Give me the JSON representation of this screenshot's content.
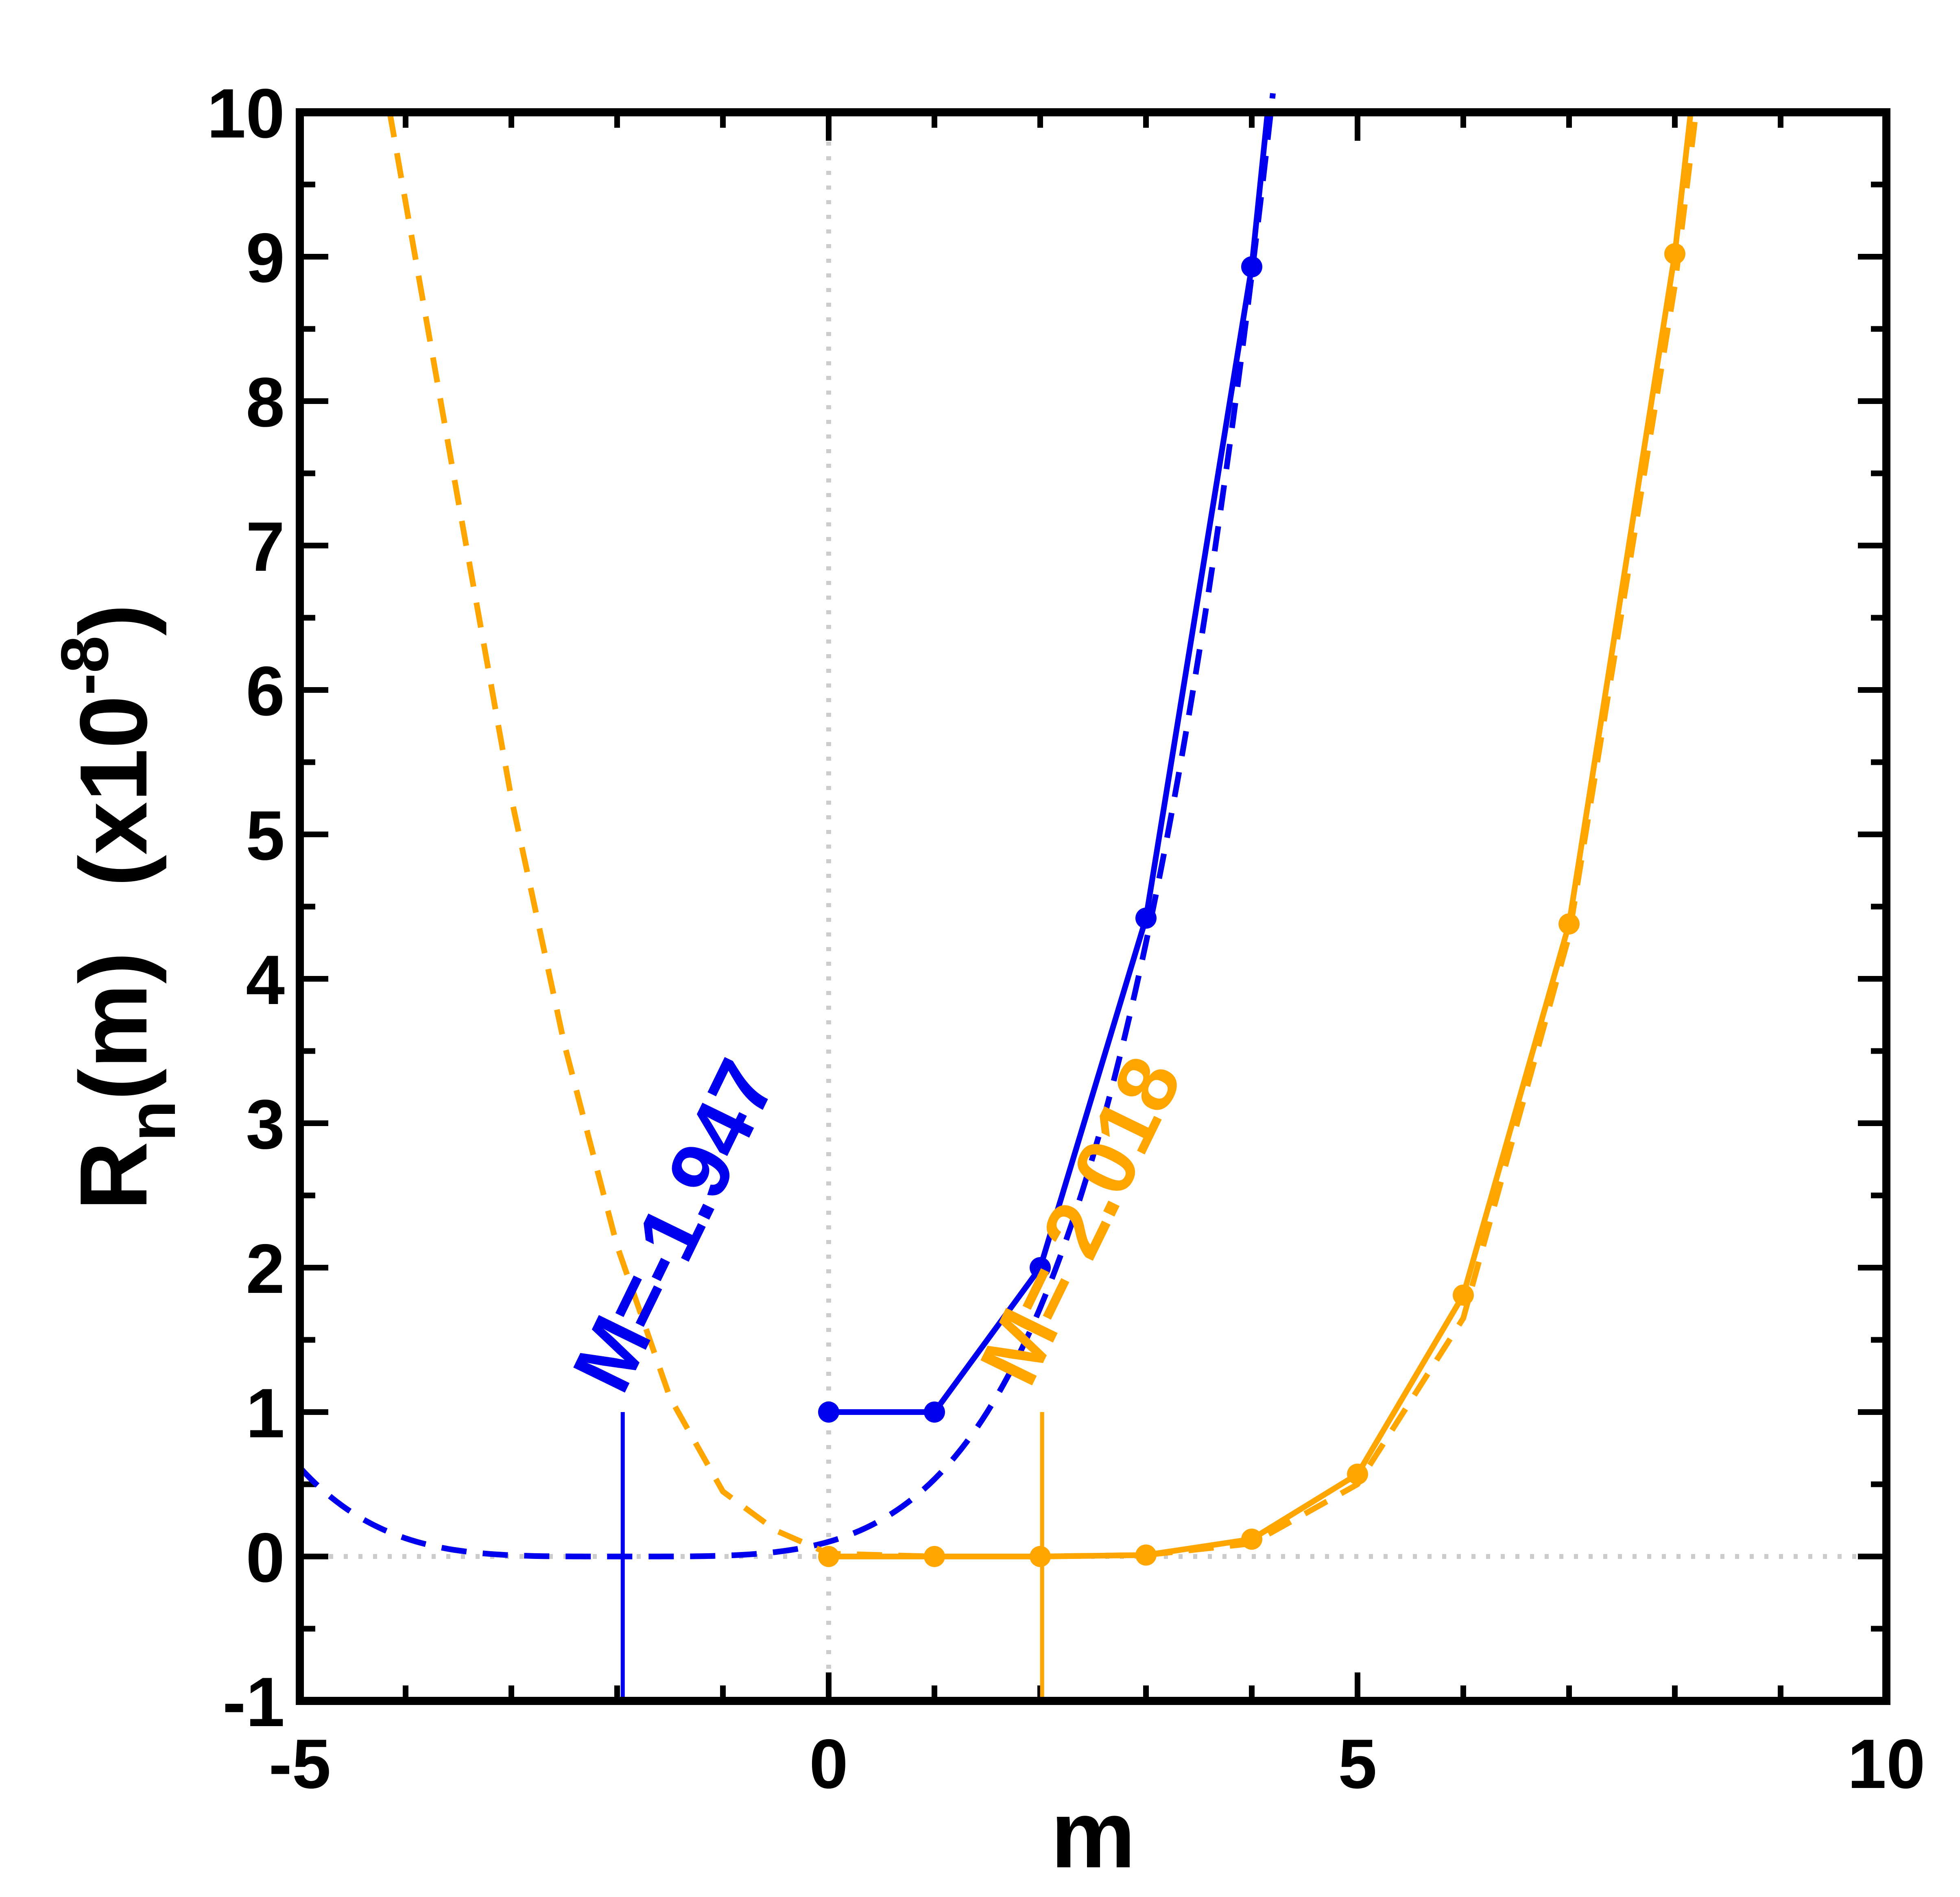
{
  "chart_data": {
    "type": "line",
    "title": "",
    "xlabel": "m",
    "ylabel": {
      "main": "R",
      "subscript": "n",
      "suffix": "(m)",
      "scale_prefix": "(x10",
      "scale_exponent": "-8",
      "scale_suffix": ")"
    },
    "xlim": [
      -5,
      10
    ],
    "ylim": [
      -1,
      10
    ],
    "x_ticks": [
      -5,
      0,
      5,
      10
    ],
    "y_ticks": [
      -1,
      0,
      1,
      2,
      3,
      4,
      5,
      6,
      7,
      8,
      9,
      10
    ],
    "x_tick_labels": [
      "-5",
      "0",
      "5",
      "10"
    ],
    "y_tick_labels": [
      "-1",
      "0",
      "1",
      "2",
      "3",
      "4",
      "5",
      "6",
      "7",
      "8",
      "9",
      "10"
    ],
    "reference_lines": [
      {
        "orientation": "vertical",
        "value": 0,
        "style": "dotted",
        "color": "#cccccc"
      },
      {
        "orientation": "horizontal",
        "value": 0,
        "style": "dotted",
        "color": "#cccccc"
      }
    ],
    "series": [
      {
        "name": "blue data",
        "color": "#0000ee",
        "style": "solid",
        "markers": true,
        "x": [
          0,
          1,
          2,
          3,
          4,
          4.15
        ],
        "y": [
          1.0,
          1.0,
          2.0,
          4.42,
          8.93,
          10.0
        ]
      },
      {
        "name": "blue fit",
        "color": "#0000ee",
        "style": "dashed",
        "markers": false,
        "center": -1.947,
        "x_range": [
          -5,
          4.2
        ]
      },
      {
        "name": "orange data",
        "color": "#ffa500",
        "style": "solid",
        "markers": true,
        "x": [
          0,
          1,
          2,
          3,
          4,
          5,
          6,
          7,
          8,
          8.15
        ],
        "y": [
          0.0,
          0.0,
          0.0,
          0.01,
          0.12,
          0.57,
          1.81,
          4.38,
          9.02,
          10.0
        ]
      },
      {
        "name": "orange fit",
        "color": "#ffa500",
        "style": "dashed",
        "markers": false,
        "x": [
          -4.15,
          -3.5,
          -3,
          -2.5,
          -2,
          -1.5,
          -1,
          -0.5,
          0,
          1,
          2,
          3,
          4,
          5,
          6,
          7,
          8,
          8.2
        ],
        "y": [
          10.0,
          7.3,
          5.25,
          3.55,
          2.15,
          1.1,
          0.45,
          0.18,
          0.02,
          0.0,
          0.0,
          0.01,
          0.09,
          0.5,
          1.65,
          4.3,
          8.8,
          10.0
        ]
      }
    ],
    "markers_vertical": [
      {
        "x": -1.947,
        "y_from": -1,
        "y_to": 1,
        "color": "#0000ee"
      },
      {
        "x": 2.018,
        "y_from": -1,
        "y_to": 1,
        "color": "#ffa500"
      }
    ],
    "annotations": [
      {
        "text": "M=-1.947",
        "color": "#0000ee",
        "anchor_x": -1.95,
        "anchor_y": 1.1,
        "rotation": -64
      },
      {
        "text": "M= 2.018",
        "color": "#ffa500",
        "anchor_x": 1.9,
        "anchor_y": 1.15,
        "rotation": -64
      }
    ]
  }
}
